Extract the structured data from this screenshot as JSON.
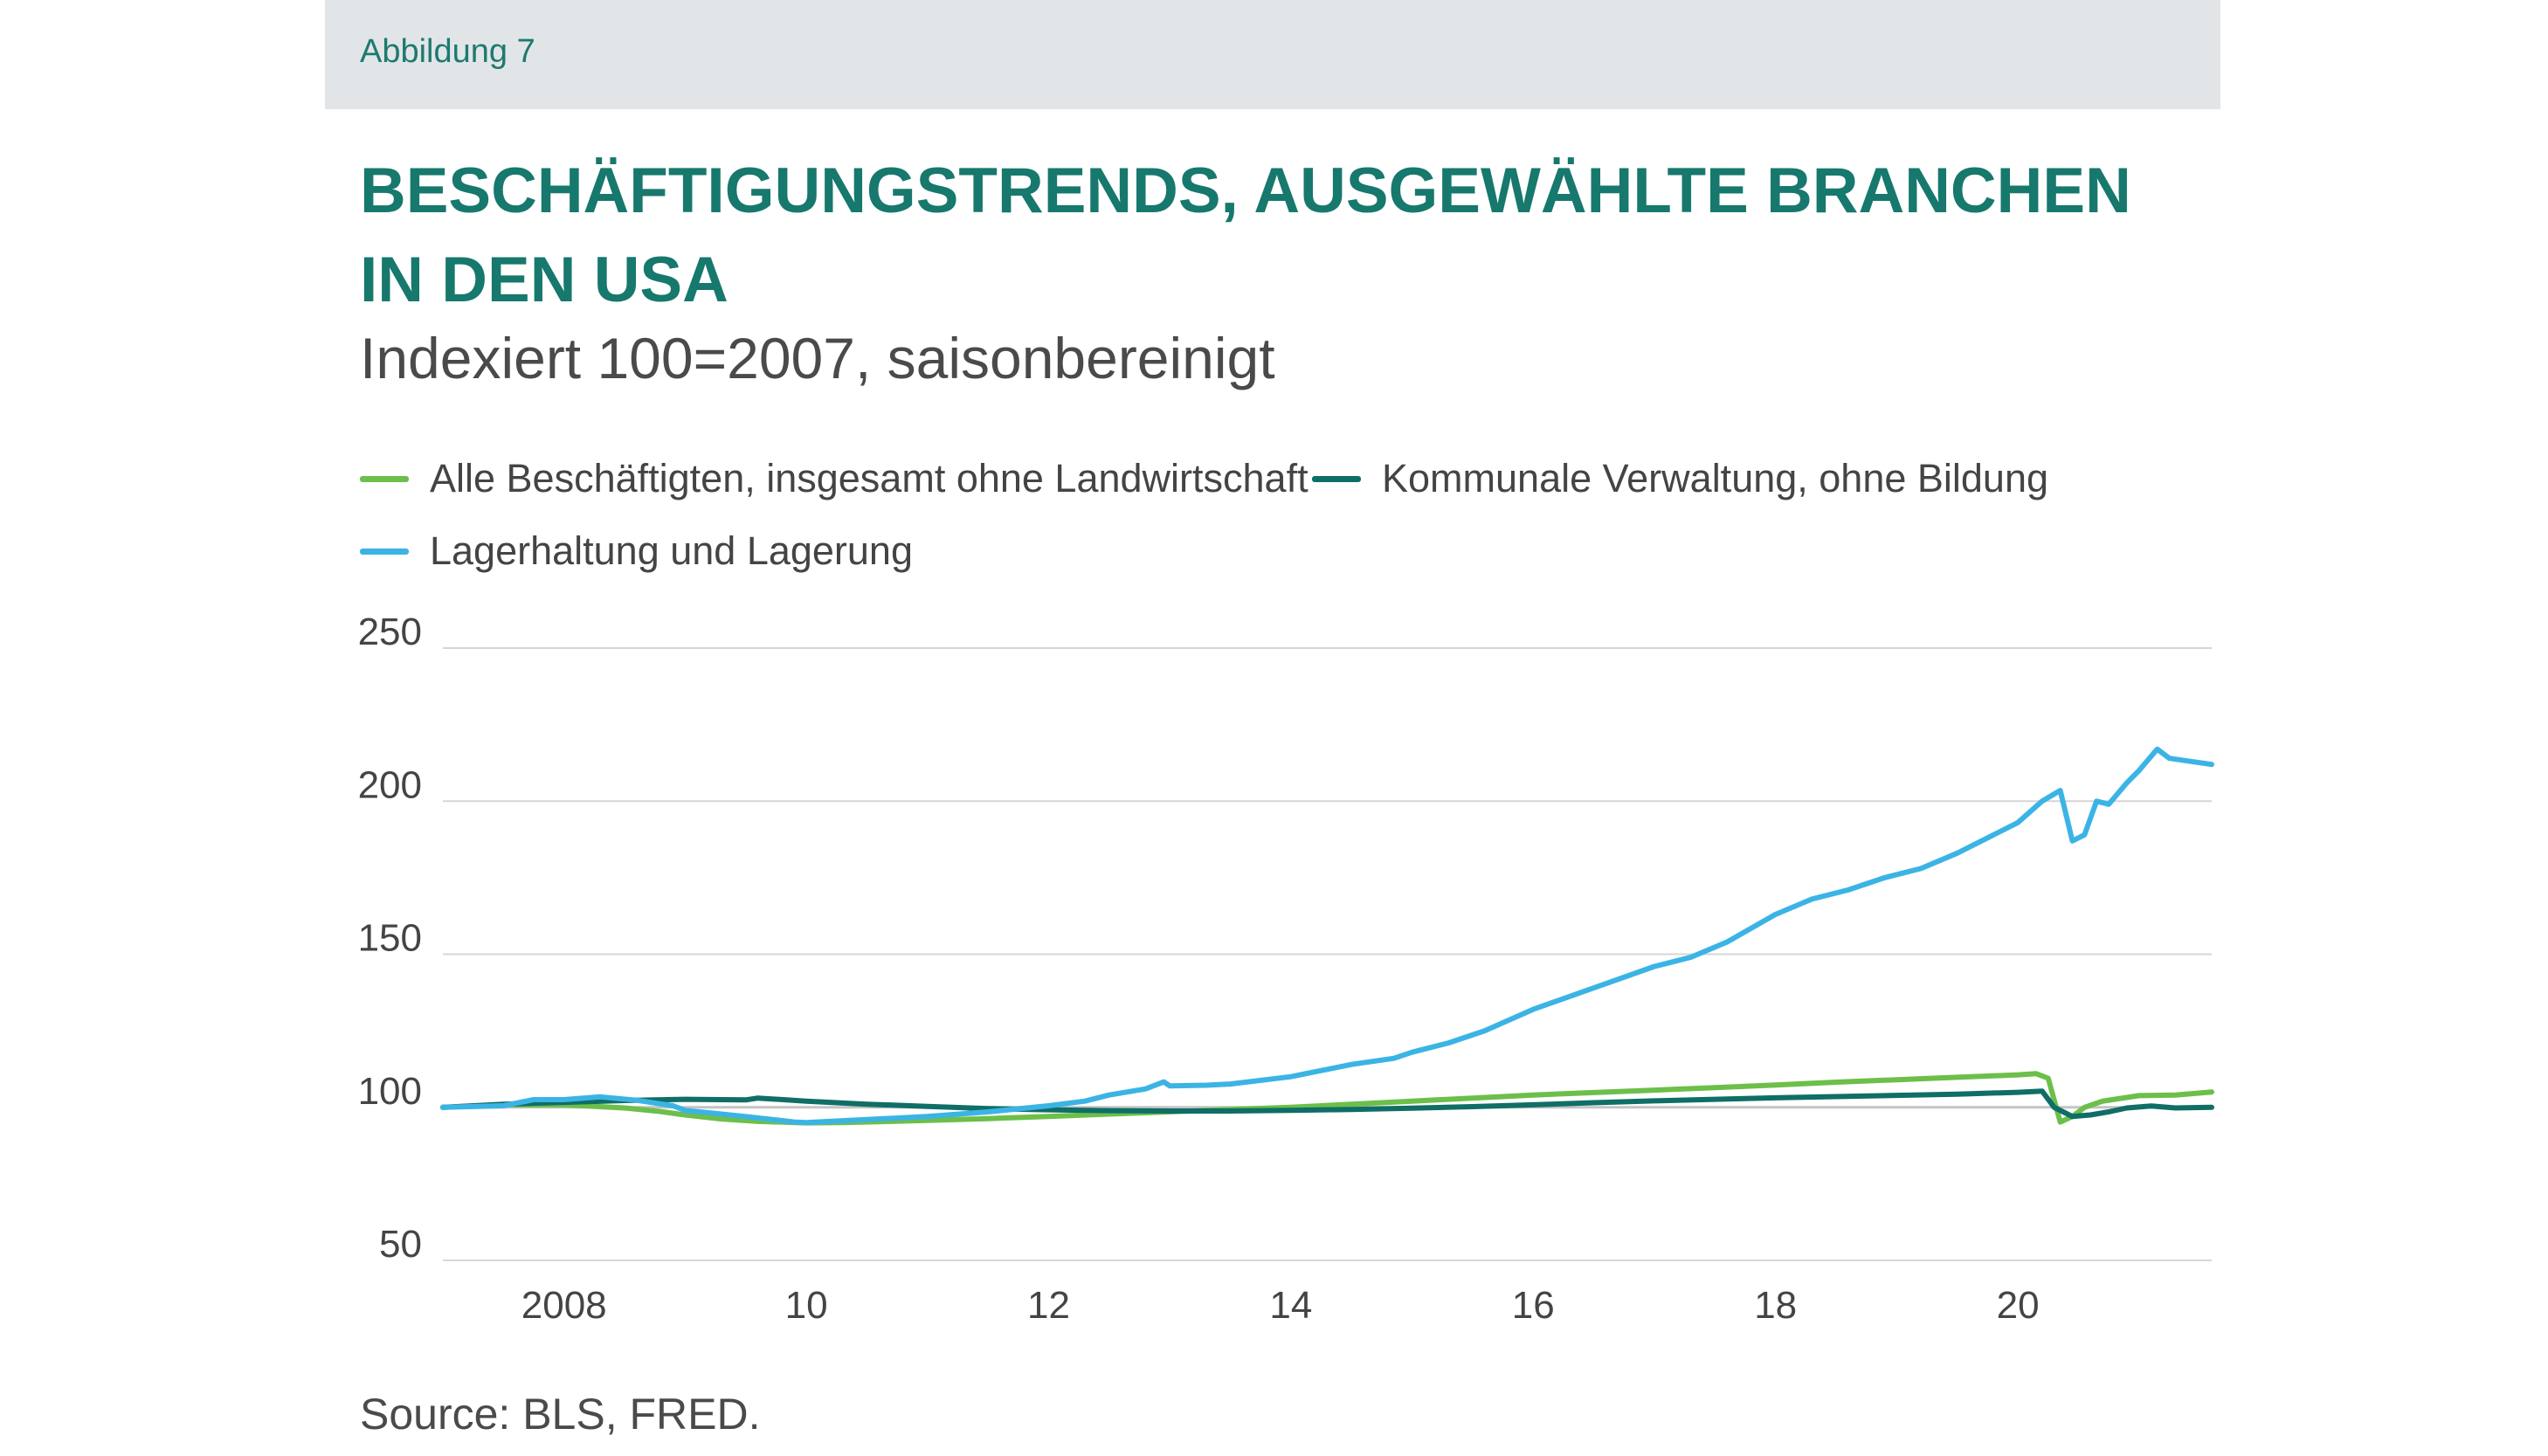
{
  "header": {
    "figure_label": "Abbildung 7"
  },
  "title": "BESCHÄFTIGUNGSTRENDS, AUSGEWÄHLTE BRANCHEN IN DEN USA",
  "subtitle": "Indexiert 100=2007, saisonbereinigt",
  "legend": [
    {
      "label": "Alle Beschäftigten, insgesamt ohne Landwirtschaft",
      "color": "#6cbf4a"
    },
    {
      "label": "Kommunale Verwaltung, ohne Bildung",
      "color": "#0f6e66"
    },
    {
      "label": "Lagerhaltung und Lagerung",
      "color": "#3bb4e5"
    }
  ],
  "source": "Source: BLS, FRED.",
  "chart_data": {
    "type": "line",
    "title": "BESCHÄFTIGUNGSTRENDS, AUSGEWÄHLTE BRANCHEN IN DEN USA",
    "subtitle": "Indexiert 100=2007, saisonbereinigt",
    "xlabel": "",
    "ylabel": "",
    "xlim": [
      2007.0,
      2021.6
    ],
    "ylim": [
      50,
      250
    ],
    "yticks": [
      250,
      200,
      150,
      100,
      50
    ],
    "xticks": [
      {
        "value": 2008,
        "label": "2008"
      },
      {
        "value": 2010,
        "label": "10"
      },
      {
        "value": 2012,
        "label": "12"
      },
      {
        "value": 2014,
        "label": "14"
      },
      {
        "value": 2016,
        "label": "16"
      },
      {
        "value": 2018,
        "label": "18"
      },
      {
        "value": 2020,
        "label": "20"
      }
    ],
    "grid": true,
    "legend_position": "top-left",
    "series": [
      {
        "name": "Alle Beschäftigten, insgesamt ohne Landwirtschaft",
        "color": "#6cbf4a",
        "points": [
          [
            2007.0,
            100
          ],
          [
            2007.5,
            100.8
          ],
          [
            2008.0,
            100.8
          ],
          [
            2008.5,
            99.8
          ],
          [
            2008.8,
            98.6
          ],
          [
            2009.0,
            97.5
          ],
          [
            2009.3,
            96.2
          ],
          [
            2009.6,
            95.4
          ],
          [
            2010.0,
            94.9
          ],
          [
            2010.3,
            95.0
          ],
          [
            2010.6,
            95.3
          ],
          [
            2011.0,
            95.7
          ],
          [
            2011.5,
            96.3
          ],
          [
            2012.0,
            97.0
          ],
          [
            2012.5,
            97.8
          ],
          [
            2013.0,
            98.5
          ],
          [
            2013.5,
            99.3
          ],
          [
            2014.0,
            100.0
          ],
          [
            2014.5,
            101.0
          ],
          [
            2015.0,
            102.0
          ],
          [
            2015.5,
            103.0
          ],
          [
            2016.0,
            104.0
          ],
          [
            2016.5,
            104.8
          ],
          [
            2017.0,
            105.6
          ],
          [
            2017.5,
            106.4
          ],
          [
            2018.0,
            107.3
          ],
          [
            2018.5,
            108.2
          ],
          [
            2019.0,
            109.0
          ],
          [
            2019.5,
            109.8
          ],
          [
            2020.0,
            110.6
          ],
          [
            2020.15,
            111.0
          ],
          [
            2020.25,
            109.5
          ],
          [
            2020.35,
            95.2
          ],
          [
            2020.45,
            97.0
          ],
          [
            2020.55,
            100.0
          ],
          [
            2020.7,
            102.0
          ],
          [
            2021.0,
            103.8
          ],
          [
            2021.3,
            104.0
          ],
          [
            2021.6,
            105.0
          ]
        ]
      },
      {
        "name": "Kommunale Verwaltung, ohne Bildung",
        "color": "#0f6e66",
        "points": [
          [
            2007.0,
            100
          ],
          [
            2007.5,
            101.0
          ],
          [
            2008.0,
            101.6
          ],
          [
            2008.5,
            102.2
          ],
          [
            2009.0,
            102.6
          ],
          [
            2009.5,
            102.4
          ],
          [
            2009.6,
            103.0
          ],
          [
            2010.0,
            102.0
          ],
          [
            2010.5,
            101.0
          ],
          [
            2011.0,
            100.3
          ],
          [
            2011.5,
            99.6
          ],
          [
            2012.0,
            99.2
          ],
          [
            2012.5,
            98.9
          ],
          [
            2013.0,
            98.8
          ],
          [
            2013.5,
            98.8
          ],
          [
            2014.0,
            99.0
          ],
          [
            2014.5,
            99.3
          ],
          [
            2015.0,
            99.7
          ],
          [
            2015.5,
            100.2
          ],
          [
            2016.0,
            100.8
          ],
          [
            2016.5,
            101.5
          ],
          [
            2017.0,
            102.1
          ],
          [
            2017.5,
            102.6
          ],
          [
            2018.0,
            103.1
          ],
          [
            2018.5,
            103.5
          ],
          [
            2019.0,
            103.9
          ],
          [
            2019.5,
            104.3
          ],
          [
            2020.0,
            104.9
          ],
          [
            2020.2,
            105.3
          ],
          [
            2020.3,
            100.0
          ],
          [
            2020.45,
            97.0
          ],
          [
            2020.6,
            97.5
          ],
          [
            2020.75,
            98.5
          ],
          [
            2020.9,
            99.8
          ],
          [
            2021.1,
            100.4
          ],
          [
            2021.3,
            99.8
          ],
          [
            2021.6,
            100.0
          ]
        ]
      },
      {
        "name": "Lagerhaltung und Lagerung",
        "color": "#3bb4e5",
        "points": [
          [
            2007.0,
            100
          ],
          [
            2007.5,
            100.5
          ],
          [
            2007.75,
            102.5
          ],
          [
            2008.0,
            102.5
          ],
          [
            2008.3,
            103.4
          ],
          [
            2008.6,
            102.3
          ],
          [
            2008.9,
            100.5
          ],
          [
            2009.0,
            99.0
          ],
          [
            2009.5,
            97.0
          ],
          [
            2009.9,
            95.2
          ],
          [
            2010.0,
            95.0
          ],
          [
            2010.5,
            96.0
          ],
          [
            2011.0,
            97.0
          ],
          [
            2011.5,
            98.5
          ],
          [
            2012.0,
            100.5
          ],
          [
            2012.3,
            102.0
          ],
          [
            2012.5,
            104.0
          ],
          [
            2012.8,
            106.0
          ],
          [
            2012.95,
            108.3
          ],
          [
            2013.0,
            107.0
          ],
          [
            2013.3,
            107.2
          ],
          [
            2013.5,
            107.6
          ],
          [
            2014.0,
            110.0
          ],
          [
            2014.5,
            114.0
          ],
          [
            2014.85,
            116.0
          ],
          [
            2015.0,
            118.0
          ],
          [
            2015.3,
            121.0
          ],
          [
            2015.6,
            125.0
          ],
          [
            2016.0,
            132.0
          ],
          [
            2016.5,
            139.0
          ],
          [
            2017.0,
            146.0
          ],
          [
            2017.3,
            149.0
          ],
          [
            2017.6,
            154.0
          ],
          [
            2018.0,
            163.0
          ],
          [
            2018.3,
            168.0
          ],
          [
            2018.6,
            171.0
          ],
          [
            2018.9,
            175.0
          ],
          [
            2019.2,
            178.0
          ],
          [
            2019.5,
            183.0
          ],
          [
            2019.8,
            189.0
          ],
          [
            2020.0,
            193.0
          ],
          [
            2020.2,
            200.0
          ],
          [
            2020.35,
            203.5
          ],
          [
            2020.45,
            187.0
          ],
          [
            2020.55,
            189.0
          ],
          [
            2020.65,
            200.0
          ],
          [
            2020.75,
            199.0
          ],
          [
            2020.9,
            206.0
          ],
          [
            2021.0,
            210.0
          ],
          [
            2021.15,
            217.0
          ],
          [
            2021.25,
            214.0
          ],
          [
            2021.6,
            212.0
          ]
        ]
      }
    ]
  }
}
